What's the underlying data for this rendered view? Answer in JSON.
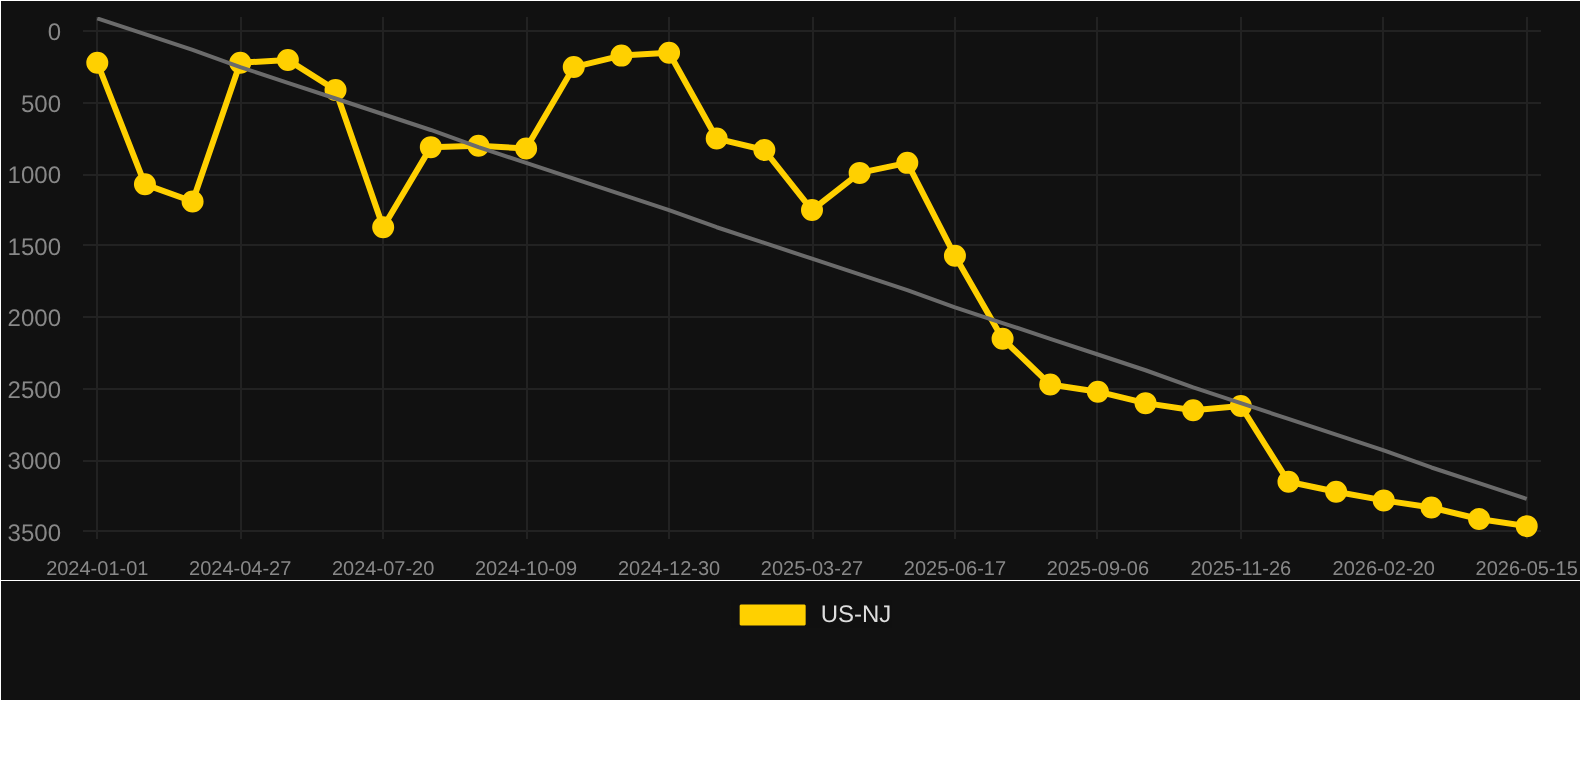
{
  "chart_data": {
    "type": "line",
    "categories": [
      "2024-01-01",
      null,
      null,
      "2024-04-27",
      null,
      null,
      "2024-07-20",
      null,
      null,
      "2024-10-09",
      null,
      null,
      "2024-12-30",
      null,
      null,
      "2025-03-27",
      null,
      null,
      "2025-06-17",
      null,
      null,
      "2025-09-06",
      null,
      null,
      "2025-11-26",
      null,
      null,
      "2026-02-20",
      null,
      null,
      "2026-05-15"
    ],
    "ylim": [
      3550,
      -100
    ],
    "yticks": [
      0,
      500,
      1000,
      1500,
      2000,
      2500,
      3000,
      3500
    ],
    "grid": true,
    "legend": "bottom",
    "marker": "circle",
    "series": [
      {
        "name": "US-NJ",
        "color": "#ffd000",
        "values": [
          220,
          1070,
          1190,
          220,
          200,
          410,
          1370,
          810,
          800,
          820,
          250,
          170,
          150,
          750,
          830,
          1250,
          990,
          920,
          1570,
          2150,
          2470,
          2520,
          2600,
          2650,
          2620,
          3150,
          3220,
          3280,
          3330,
          3410,
          3460
        ]
      },
      {
        "type": "line",
        "marker": "none",
        "color": "#6b6b6b",
        "values": [
          -90,
          20,
          130,
          250,
          360,
          470,
          580,
          690,
          810,
          920,
          1030,
          1140,
          1250,
          1370,
          1480,
          1590,
          1700,
          1810,
          1930,
          2040,
          2150,
          2260,
          2370,
          2490,
          2600,
          2710,
          2820,
          2930,
          3050,
          3160,
          3270
        ]
      }
    ]
  }
}
